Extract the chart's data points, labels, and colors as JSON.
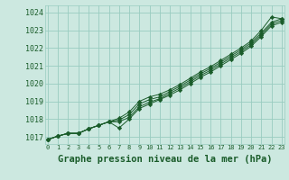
{
  "title": "Graphe pression niveau de la mer (hPa)",
  "background_color": "#cce8e0",
  "grid_color": "#99ccc0",
  "line_color": "#1a5c2a",
  "marker_color": "#1a5c2a",
  "xlim": [
    -0.3,
    23.3
  ],
  "ylim": [
    1016.6,
    1024.4
  ],
  "yticks": [
    1017,
    1018,
    1019,
    1020,
    1021,
    1022,
    1023,
    1024
  ],
  "xticks": [
    0,
    1,
    2,
    3,
    4,
    5,
    6,
    7,
    8,
    9,
    10,
    11,
    12,
    13,
    14,
    15,
    16,
    17,
    18,
    19,
    20,
    21,
    22,
    23
  ],
  "series": [
    [
      1016.85,
      1017.05,
      1017.2,
      1017.2,
      1017.45,
      1017.65,
      1017.85,
      1017.95,
      1018.25,
      1018.85,
      1019.1,
      1019.25,
      1019.55,
      1019.85,
      1020.2,
      1020.55,
      1020.85,
      1021.2,
      1021.55,
      1021.9,
      1022.3,
      1022.85,
      1023.45,
      1023.65
    ],
    [
      1016.85,
      1017.05,
      1017.2,
      1017.2,
      1017.45,
      1017.65,
      1017.85,
      1017.85,
      1018.1,
      1018.7,
      1018.95,
      1019.15,
      1019.45,
      1019.75,
      1020.1,
      1020.45,
      1020.75,
      1021.1,
      1021.45,
      1021.8,
      1022.2,
      1022.75,
      1023.35,
      1023.55
    ],
    [
      1016.85,
      1017.05,
      1017.2,
      1017.2,
      1017.45,
      1017.65,
      1017.85,
      1017.5,
      1018.0,
      1018.6,
      1018.85,
      1019.1,
      1019.35,
      1019.65,
      1020.0,
      1020.35,
      1020.65,
      1021.0,
      1021.35,
      1021.7,
      1022.1,
      1022.65,
      1023.25,
      1023.45
    ]
  ],
  "series_top": [
    1016.85,
    1017.05,
    1017.2,
    1017.2,
    1017.45,
    1017.65,
    1017.85,
    1018.05,
    1018.4,
    1019.0,
    1019.25,
    1019.4,
    1019.65,
    1019.95,
    1020.3,
    1020.65,
    1020.95,
    1021.3,
    1021.65,
    1022.0,
    1022.4,
    1023.0,
    1023.75,
    1023.65
  ],
  "title_fontsize": 7.5,
  "tick_fontsize": 6,
  "xlabel_fontsize": 7.5
}
